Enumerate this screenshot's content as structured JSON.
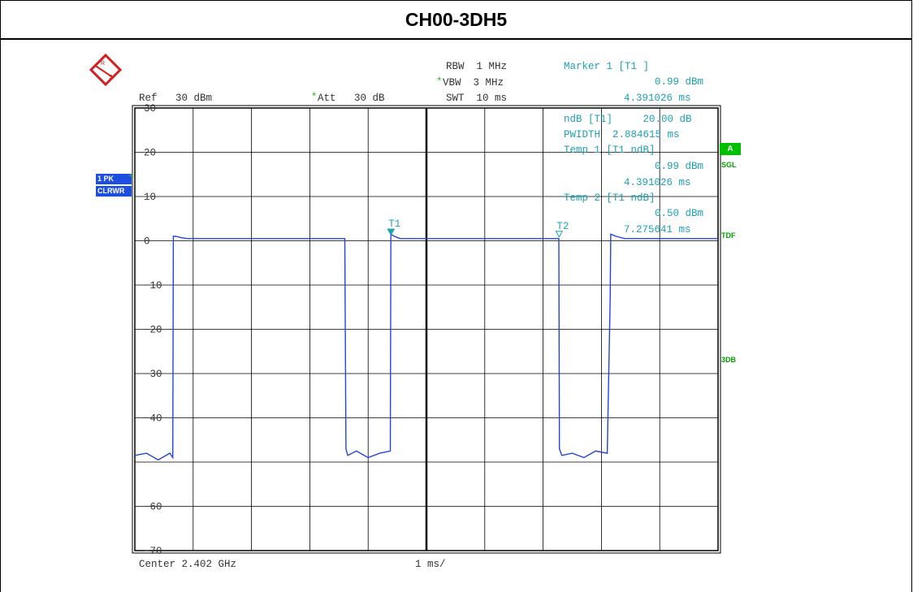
{
  "title": "CH00-3DH5",
  "header": {
    "ref": "Ref   30 dBm",
    "att": "Att   30 dB",
    "rbw": "RBW  1 MHz",
    "vbw": "VBW  3 MHz",
    "swt": "SWT  10 ms",
    "star": "*"
  },
  "marker": {
    "title": "Marker 1 [T1 ]",
    "level": "0.99 dBm",
    "time": "4.391026 ms"
  },
  "ndb": {
    "line": "ndB [T1]     20.00 dB",
    "pwidth": "PWIDTH  2.884615 ms",
    "temp1_title": "Temp 1 [T1 ndB]",
    "temp1_level": "0.99 dBm",
    "temp1_time": "4.391026 ms",
    "temp2_title": "Temp 2 [T1 ndB]",
    "temp2_level": "0.50 dBm",
    "temp2_time": "7.275641 ms"
  },
  "side": {
    "a": "A",
    "sgl": "SGL",
    "tdf": "TDF",
    "db3": "3DB",
    "pk": "1 PK",
    "clrwr": "CLRWR"
  },
  "footer": {
    "center": "Center 2.402 GHz",
    "div": "1 ms/"
  },
  "chart_data": {
    "type": "line",
    "title": "CH00-3DH5",
    "xlabel": "",
    "ylabel": "",
    "xlim": [
      0,
      10
    ],
    "ylim": [
      -70,
      30
    ],
    "x_unit": "ms",
    "y_unit": "dBm",
    "y_ticks": [
      30,
      20,
      10,
      0,
      -10,
      -20,
      -30,
      -40,
      -60,
      -70
    ],
    "grid": true,
    "series": [
      {
        "color": "#2244dd",
        "x": [
          0,
          0.2,
          0.4,
          0.6,
          0.65,
          0.66,
          0.7,
          0.8,
          0.9,
          1.0,
          2.0,
          3.0,
          3.6,
          3.62,
          3.65,
          3.8,
          4.0,
          4.2,
          4.38,
          4.39,
          4.45,
          4.55,
          5.0,
          6.0,
          7.0,
          7.27,
          7.28,
          7.32,
          7.5,
          7.7,
          7.9,
          8.1,
          8.15,
          8.16,
          8.25,
          8.4,
          9.0,
          10.0
        ],
        "values": [
          -48.5,
          -48,
          -49.5,
          -48,
          -49,
          1,
          1,
          0.7,
          0.5,
          0.5,
          0.5,
          0.5,
          0.5,
          -47,
          -48.5,
          -47.5,
          -49,
          -48,
          -47.5,
          1.5,
          1,
          0.5,
          0.5,
          0.5,
          0.5,
          0.5,
          -47,
          -48.5,
          -48,
          -49,
          -47.5,
          -48,
          -13,
          1.5,
          1,
          0.5,
          0.5,
          0.5
        ]
      }
    ],
    "markers": [
      {
        "label": "T1",
        "x": 4.391026,
        "y": 0.99
      },
      {
        "label": "T2",
        "x": 7.275641,
        "y": 0.5
      }
    ]
  }
}
